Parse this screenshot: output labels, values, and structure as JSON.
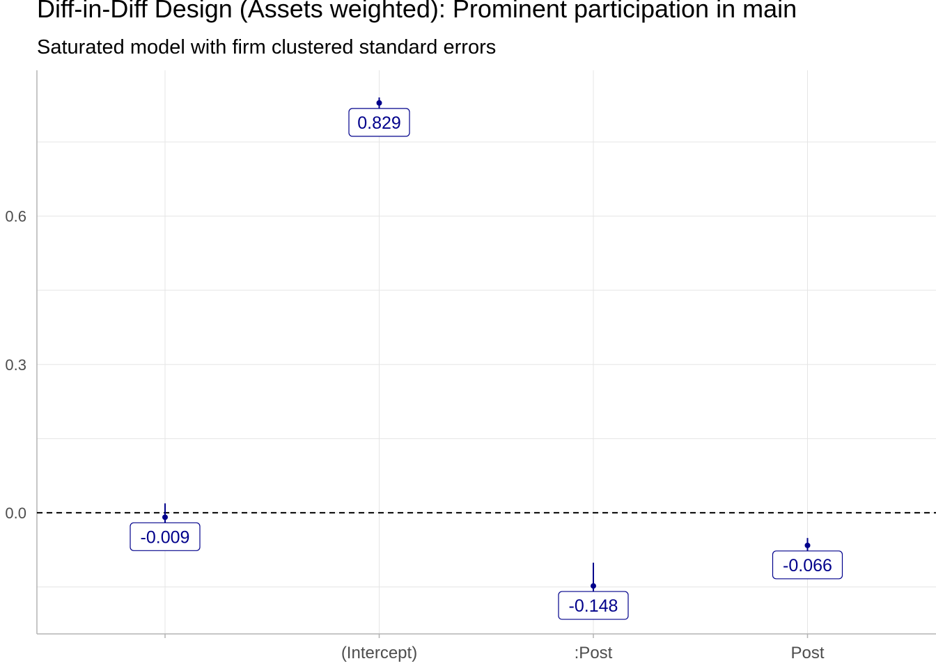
{
  "title": "Diff-in-Diff Design (Assets weighted): Prominent participation in main",
  "subtitle": "Saturated model with firm clustered standard errors",
  "colors": {
    "point": "#00008b",
    "grid": "#e5e5e5",
    "axis": "#b3b3b3",
    "ref_line": "#000000"
  },
  "chart_data": {
    "type": "scatter",
    "subtype": "coefficient-plot-with-error-bars",
    "title": "Diff-in-Diff Design (Assets weighted): Prominent participation in main",
    "subtitle": "Saturated model with firm clustered standard errors",
    "xlabel": "",
    "ylabel": "",
    "categories": [
      "",
      "(Intercept)",
      ":Post",
      "Post"
    ],
    "values": [
      -0.009,
      0.829,
      -0.148,
      -0.066
    ],
    "labels": [
      "-0.009",
      "0.829",
      "-0.148",
      "-0.066"
    ],
    "ci_low": [
      -0.022,
      0.817,
      -0.195,
      -0.082
    ],
    "ci_high": [
      0.019,
      0.84,
      -0.101,
      -0.051
    ],
    "yticks": [
      0.0,
      0.3,
      0.6
    ],
    "ytick_labels": [
      "0.0",
      "0.3",
      "0.6"
    ],
    "ylim": [
      -0.245,
      0.895
    ],
    "reference_line": 0,
    "grid": true,
    "legend": "none"
  }
}
